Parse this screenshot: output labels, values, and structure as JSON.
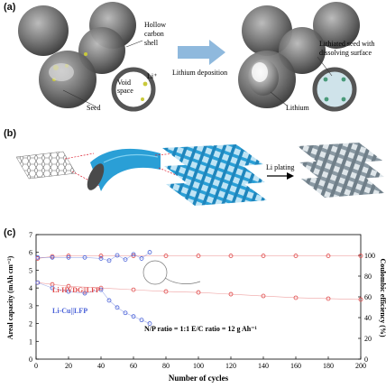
{
  "figure": {
    "panel_a": {
      "label": "(a)",
      "annotations": {
        "hollow_carbon_shell": [
          "Hollow",
          "carbon",
          "shell"
        ],
        "void_space": [
          "Void",
          "space"
        ],
        "li_ion": "Li⁺",
        "seed": "Seed",
        "process": "Lithium deposition",
        "lithiated_seed": [
          "Lithiated seed with",
          "dissolving surface"
        ],
        "lithium": "Lithium"
      },
      "colors": {
        "sphere": "#6e6e6e",
        "arrow": "#8fb9dd",
        "seed": "#c9c93a"
      }
    },
    "panel_b": {
      "label": "(b)",
      "annotations": {
        "process": "Li plating"
      },
      "colors": {
        "tube": "#2a9fd6",
        "plated": "#7f8f99"
      }
    },
    "panel_c": {
      "label": "(c)",
      "legend": {
        "hvdg": "Li-HVDG||LFP",
        "cu": "Li-Cu||LFP"
      },
      "note": "N/P ratio = 1:1    E/C ratio = 12 g Ah⁻¹"
    }
  },
  "chart_data": {
    "type": "scatter",
    "xlabel": "Number of cycles",
    "ylabel_left": "Areal capacity (mAh cm⁻²)",
    "ylabel_right": "Coulombic efficiency (%)",
    "xlim": [
      0,
      200
    ],
    "ylim_left": [
      0,
      7
    ],
    "ylim_right": [
      0,
      120
    ],
    "x_ticks": [
      0,
      20,
      40,
      60,
      80,
      100,
      120,
      140,
      160,
      180,
      200
    ],
    "y_ticks_left": [
      0,
      1,
      2,
      3,
      4,
      5,
      6,
      7
    ],
    "y_ticks_right": [
      0,
      20,
      40,
      60,
      80,
      100
    ],
    "series": [
      {
        "name": "Li-HVDG||LFP",
        "axis": "left",
        "color": "#e04848",
        "x": [
          1,
          10,
          20,
          40,
          60,
          80,
          100,
          120,
          140,
          160,
          180,
          200
        ],
        "y": [
          4.3,
          4.2,
          4.1,
          4.0,
          3.9,
          3.8,
          3.75,
          3.65,
          3.55,
          3.45,
          3.4,
          3.35
        ]
      },
      {
        "name": "Li-Cu||LFP",
        "axis": "left",
        "color": "#4a62d8",
        "x": [
          1,
          10,
          20,
          30,
          40,
          45,
          50,
          55,
          60,
          65,
          70
        ],
        "y": [
          4.3,
          4.0,
          3.8,
          3.7,
          3.9,
          3.3,
          2.9,
          2.6,
          2.4,
          2.2,
          2.0
        ]
      },
      {
        "name": "CE Li-HVDG||LFP",
        "axis": "right",
        "color": "#e04848",
        "x": [
          1,
          10,
          20,
          40,
          60,
          80,
          100,
          120,
          140,
          160,
          180,
          200
        ],
        "y": [
          97,
          99,
          99.5,
          99.5,
          99.5,
          99.5,
          99.5,
          99.5,
          99.5,
          99.5,
          99.5,
          99.5
        ]
      },
      {
        "name": "CE Li-Cu||LFP",
        "axis": "right",
        "color": "#4a62d8",
        "x": [
          1,
          10,
          20,
          30,
          40,
          45,
          50,
          55,
          60,
          65,
          70
        ],
        "y": [
          98,
          98,
          98,
          98,
          97,
          95,
          100,
          96,
          101,
          97,
          103
        ]
      }
    ]
  }
}
